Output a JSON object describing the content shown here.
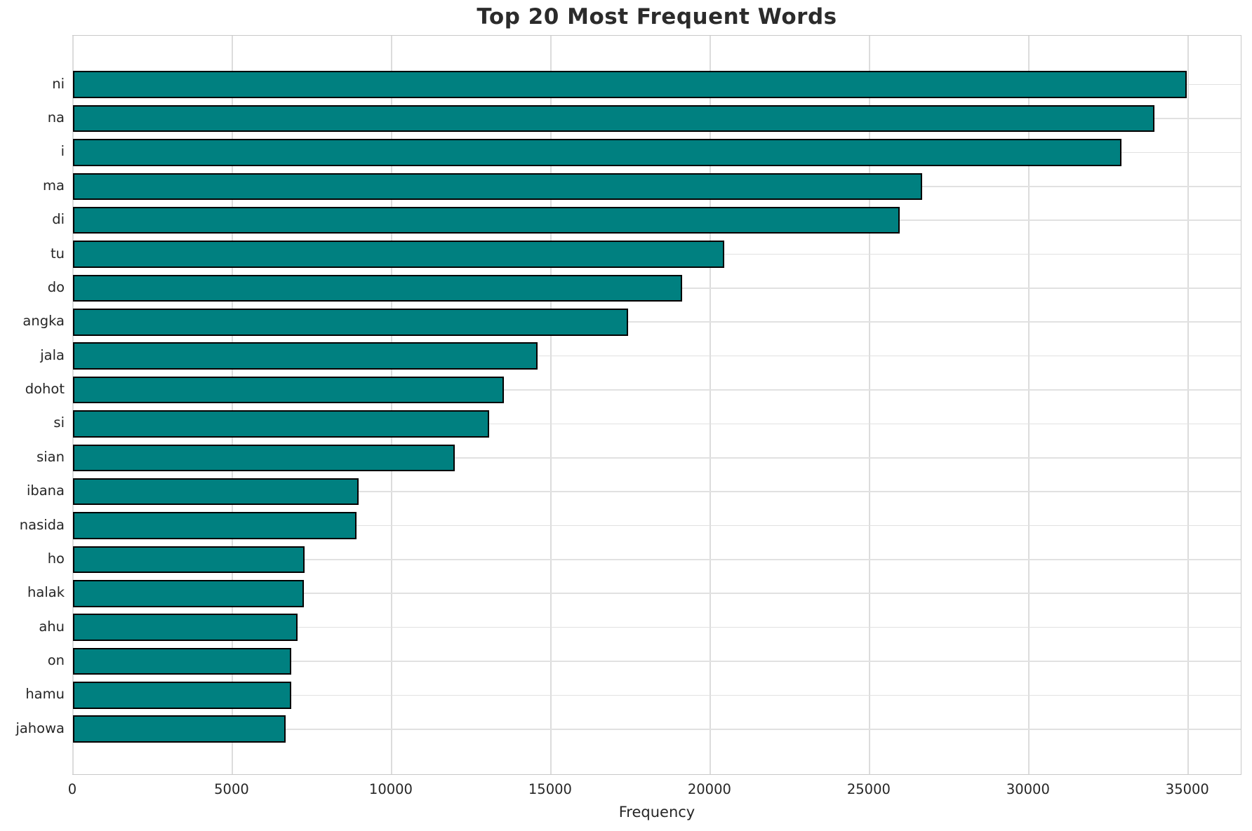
{
  "chart_data": {
    "type": "bar",
    "orientation": "horizontal",
    "title": "Top 20 Most Frequent Words",
    "xlabel": "Frequency",
    "ylabel": "",
    "categories": [
      "ni",
      "na",
      "i",
      "ma",
      "di",
      "tu",
      "do",
      "angka",
      "jala",
      "dohot",
      "si",
      "sian",
      "ibana",
      "nasida",
      "ho",
      "halak",
      "ahu",
      "on",
      "hamu",
      "jahowa"
    ],
    "values": [
      34950,
      33950,
      32920,
      26660,
      25960,
      20450,
      19110,
      17430,
      14590,
      13530,
      13060,
      11980,
      8960,
      8900,
      7270,
      7250,
      7060,
      6850,
      6840,
      6670
    ],
    "xlim": [
      0,
      36700
    ],
    "xticks": [
      0,
      5000,
      10000,
      15000,
      20000,
      25000,
      30000,
      35000
    ],
    "grid": true,
    "legend": false,
    "bar_color": "#008080",
    "bar_edge_color": "#000000",
    "grid_color": "#dcdcdc",
    "text_color": "#262626",
    "title_color": "#2b2b2b",
    "background_color": "#ffffff"
  }
}
